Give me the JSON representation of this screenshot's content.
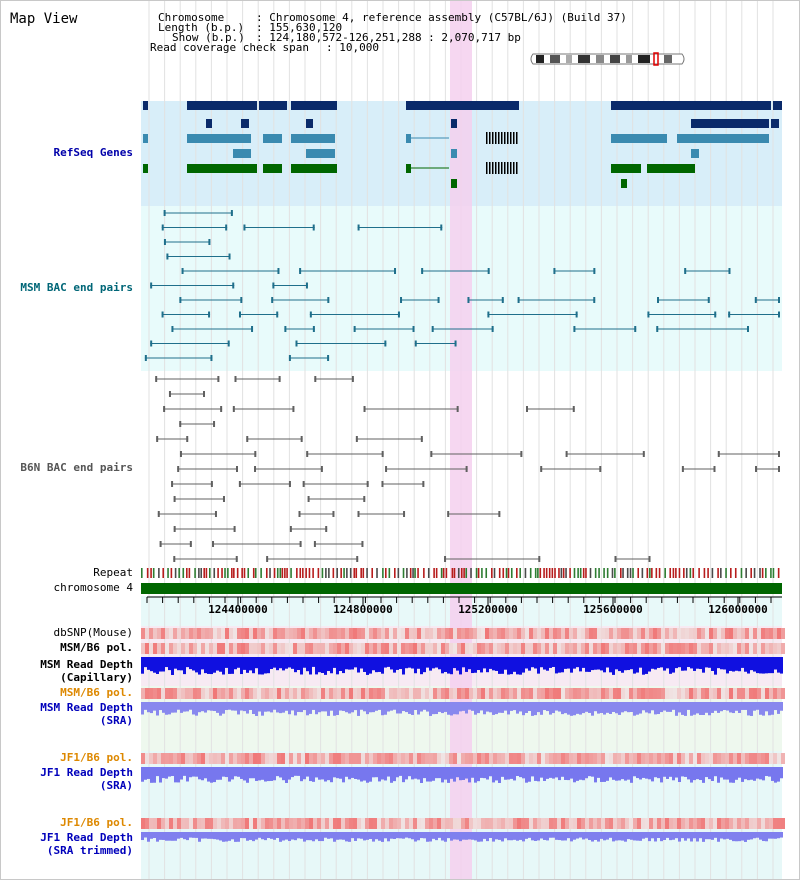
{
  "title": "Map View",
  "info": {
    "chromosome_key": "Chromosome",
    "chromosome_val": ": Chromosome 4, reference assembly (C57BL/6J) (Build 37)",
    "length_key": "Length (b.p.)",
    "length_val": ": 155,630,120",
    "show_key": "Show (b.p.)",
    "show_val": ": 124,180,572-126,251,288 : 2,070,717 bp",
    "coverage_key": "Read coverage check span",
    "coverage_val": ": 10,000"
  },
  "tracks": {
    "refseq": "RefSeq Genes",
    "msm_bac": "MSM BAC end pairs",
    "b6n_bac": "B6N BAC end pairs",
    "repeat": "Repeat",
    "chromosome": "chromosome 4",
    "dbsnp": "dbSNP(Mouse)",
    "msm_b6_pol_1": "MSM/B6 pol.",
    "msm_read_depth_cap_1": "MSM Read Depth",
    "msm_read_depth_cap_2": "(Capillary)",
    "msm_b6_pol_2": "MSM/B6 pol.",
    "msm_read_depth_sra_1": "MSM Read Depth",
    "msm_read_depth_sra_2": "(SRA)",
    "jf1_b6_pol_1": "JF1/B6 pol.",
    "jf1_read_depth_sra_1": "JF1 Read Depth",
    "jf1_read_depth_sra_2": "(SRA)",
    "jf1_b6_pol_2": "JF1/B6 pol.",
    "jf1_read_depth_trim_1": "JF1 Read Depth",
    "jf1_read_depth_trim_2": "(SRA trimmed)"
  },
  "axis": {
    "ticks": [
      "124400000",
      "124800000",
      "125200000",
      "125600000",
      "126000000"
    ]
  },
  "colors": {
    "refseq_label": "#0000aa",
    "msm_bac_label": "#006677",
    "b6n_bac_label": "#555555",
    "pol_label": "#dd8800",
    "read_depth_label": "#0000bb",
    "gene_dark_blue": "#0a2a6a",
    "gene_light_blue": "#3a8ab0",
    "gene_green": "#006600",
    "highlight": "#f5d0ee",
    "chromosome_bar": "#006600"
  }
}
